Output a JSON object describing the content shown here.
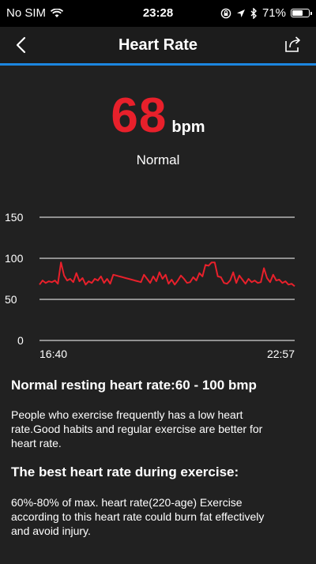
{
  "status_bar": {
    "carrier": "No SIM",
    "time": "23:28",
    "battery": "71%",
    "battery_level": 0.71
  },
  "nav": {
    "title": "Heart Rate"
  },
  "reading": {
    "value": "68",
    "unit": "bpm",
    "status": "Normal"
  },
  "chart_data": {
    "type": "line",
    "y_ticks": [
      "150",
      "100",
      "50",
      "0"
    ],
    "ylim": [
      0,
      150
    ],
    "x_start_label": "16:40",
    "x_end_label": "22:57",
    "line_color": "#e8202b",
    "series": [
      {
        "values": [
          68,
          73,
          70,
          72,
          71,
          73,
          69,
          95,
          79,
          73,
          75,
          71,
          82,
          72,
          76,
          68,
          72,
          70,
          75,
          73,
          78,
          70,
          75,
          69,
          80,
          79,
          78,
          77,
          76,
          75,
          74,
          73,
          72,
          71,
          80,
          75,
          70,
          78,
          72,
          83,
          75,
          80,
          69,
          74,
          68,
          73,
          79,
          75,
          70,
          71,
          77,
          73,
          82,
          78,
          92,
          91,
          95,
          95,
          78,
          77,
          70,
          69,
          73,
          83,
          70,
          79,
          74,
          69,
          75,
          71,
          73,
          70,
          71,
          88,
          76,
          71,
          80,
          73,
          74,
          70,
          72,
          68,
          69,
          66
        ]
      }
    ]
  },
  "sections": [
    {
      "title": "Normal resting heart rate:60 - 100 bmp",
      "body": [
        "People who exercise frequently has a low heart",
        "rate.Good habits and regular exercise are better for",
        "heart rate."
      ]
    },
    {
      "title": "The best heart rate during exercise:",
      "body": [
        "60%-80% of max. heart rate(220-age) Exercise",
        "according to this heart rate could burn fat effectively",
        "and avoid injury."
      ]
    }
  ]
}
